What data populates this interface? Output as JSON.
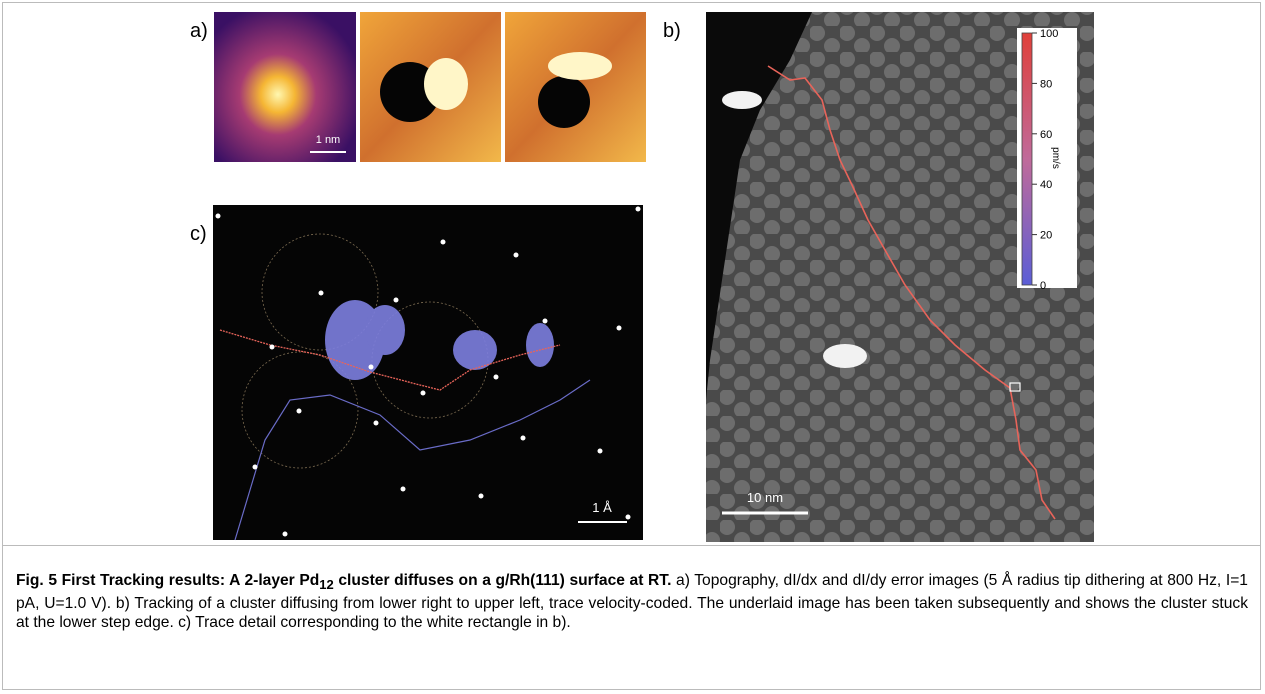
{
  "figure": {
    "panels": {
      "a": {
        "label": "a)",
        "scalebar": "1 nm"
      },
      "b": {
        "label": "b)",
        "scalebar": "10 nm",
        "colorbar": {
          "ticks": [
            100,
            80,
            60,
            40,
            20,
            0
          ],
          "label": "pm/s"
        }
      },
      "c": {
        "label": "c)",
        "scalebar": "1 Å"
      }
    },
    "caption": {
      "bold_1": "Fig. 5 First Tracking results: A 2-layer Pd",
      "bold_sub": "12",
      "bold_2": " cluster diffuses on a g/Rh(111) surface at RT.",
      "text": " a) Topography, dI/dx and dI/dy error images (5 Å radius tip dithering at 800 Hz, I=1 pA, U=1.0 V). b) Tracking of a cluster diffusing from lower right to upper left, trace velocity-coded. The underlaid image has been taken subsequently and shows the cluster stuck at the lower step edge. c) Trace detail corresponding to the white rectangle in b)."
    }
  }
}
